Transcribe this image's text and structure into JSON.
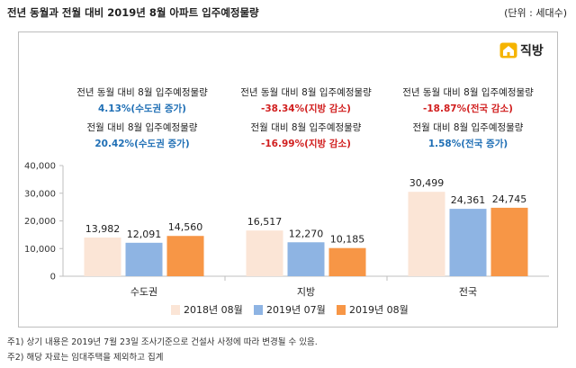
{
  "header": {
    "title": "전년 동월과 전월 대비 2019년 8월 아파트 입주예정물량",
    "unit": "(단위 : 세대수)"
  },
  "logo": {
    "text": "직방",
    "icon": "house-icon"
  },
  "annotations": [
    {
      "yoy_label": "전년 동월 대비 8월 입주예정물량",
      "yoy_value": "4.13%(수도권 증가)",
      "yoy_color": "#1f6fb5",
      "mom_label": "전월 대비 8월 입주예정물량",
      "mom_value": "20.42%(수도권 증가)",
      "mom_color": "#1f6fb5"
    },
    {
      "yoy_label": "전년 동월 대비 8월 입주예정물량",
      "yoy_value": "-38.34%(지방 감소)",
      "yoy_color": "#d11f1f",
      "mom_label": "전월 대비 8월 입주예정물량",
      "mom_value": "-16.99%(지방 감소)",
      "mom_color": "#d11f1f"
    },
    {
      "yoy_label": "전년 동월 대비 8월 입주예정물량",
      "yoy_value": "-18.87%(전국 감소)",
      "yoy_color": "#d11f1f",
      "mom_label": "전월 대비 8월 입주예정물량",
      "mom_value": "1.58%(전국 증가)",
      "mom_color": "#1f6fb5"
    }
  ],
  "chart_data": {
    "type": "bar",
    "categories": [
      "수도권",
      "지방",
      "전국"
    ],
    "series": [
      {
        "name": "2018년 08월",
        "values": [
          13982,
          16517,
          30499
        ],
        "labels": [
          "13,982",
          "16,517",
          "30,499"
        ],
        "color": "#fbe5d6"
      },
      {
        "name": "2019년 07월",
        "values": [
          12091,
          12270,
          24361
        ],
        "labels": [
          "12,091",
          "12,270",
          "24,361"
        ],
        "color": "#8eb4e3"
      },
      {
        "name": "2019년 08월",
        "values": [
          14560,
          10185,
          24745
        ],
        "labels": [
          "14,560",
          "10,185",
          "24,745"
        ],
        "color": "#f79646"
      }
    ],
    "ylim": [
      0,
      40000
    ],
    "yticks": [
      0,
      10000,
      20000,
      30000,
      40000
    ],
    "ytick_labels": [
      "0",
      "10,000",
      "20,000",
      "30,000",
      "40,000"
    ],
    "grid": false,
    "legend": "bottom"
  },
  "notes": [
    "주1) 상기 내용은 2019년 7월 23일 조사기준으로 건설사 사정에 따라 변경될 수 있음.",
    "주2) 해당 자료는 임대주택을 제외하고 집계"
  ]
}
